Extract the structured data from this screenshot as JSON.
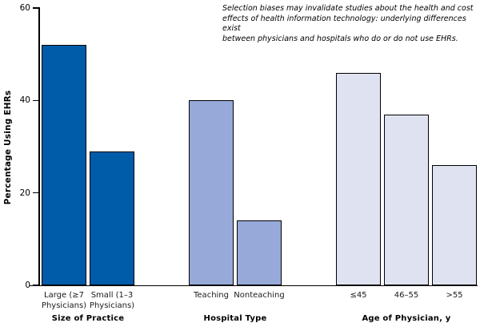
{
  "figure": {
    "annotation_lines": [
      "Selection biases may invalidate studies about the health and cost",
      "effects of health information technology: underlying differences exist",
      "between physicians and hospitals who do or do not use EHRs."
    ]
  },
  "chart_data": {
    "type": "bar",
    "title": "",
    "xlabel": "",
    "ylabel": "Percentage Using EHRs",
    "ylim": [
      0,
      60
    ],
    "yticks": [
      0,
      20,
      40,
      60
    ],
    "grid": false,
    "legend": "none",
    "annotation": "Selection biases may invalidate studies about the health and cost effects of health information technology: underlying differences exist between physicians and hospitals who do or do not use EHRs.",
    "bar_border_color": "#000000",
    "groups": [
      {
        "label": "Size of Practice",
        "bar_color": "#005CA9",
        "categories": [
          "Large (≥7 Physicians)",
          "Small (1–3 Physicians)"
        ],
        "category_lines": [
          [
            "Large (≥7",
            "Physicians)"
          ],
          [
            "Small (1–3",
            "Physicians)"
          ]
        ],
        "values": [
          52,
          29
        ]
      },
      {
        "label": "Hospital Type",
        "bar_color": "#97A9D9",
        "categories": [
          "Teaching",
          "Nonteaching"
        ],
        "category_lines": [
          [
            "Teaching"
          ],
          [
            "Nonteaching"
          ]
        ],
        "values": [
          40,
          14
        ]
      },
      {
        "label": "Age of Physician, y",
        "bar_color": "#DFE3F1",
        "categories": [
          "≤45",
          "46–55",
          ">55"
        ],
        "category_lines": [
          [
            "≤45"
          ],
          [
            "46–55"
          ],
          [
            ">55"
          ]
        ],
        "values": [
          46,
          37,
          26
        ]
      }
    ]
  }
}
